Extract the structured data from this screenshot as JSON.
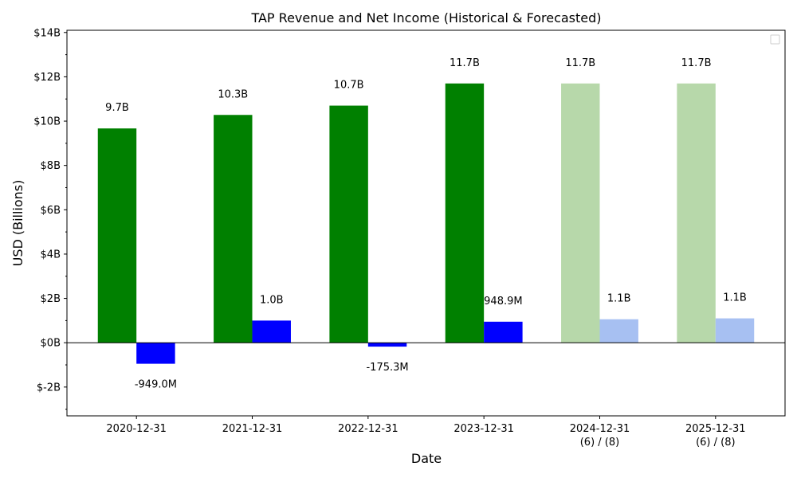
{
  "chart_data": {
    "type": "bar",
    "title": "TAP Revenue and Net Income (Historical & Forecasted)",
    "xlabel": "Date",
    "ylabel": "USD (Billions)",
    "ylim": [
      -3.3,
      14.1
    ],
    "y_ticks": [
      -2,
      0,
      2,
      4,
      6,
      8,
      10,
      12,
      14
    ],
    "y_tick_labels": [
      "$-2B",
      "$0B",
      "$2B",
      "$4B",
      "$6B",
      "$8B",
      "$10B",
      "$12B",
      "$14B"
    ],
    "categories": [
      "2020-12-31",
      "2021-12-31",
      "2022-12-31",
      "2023-12-31",
      "2024-12-31",
      "2025-12-31"
    ],
    "category_sublabels": [
      "",
      "",
      "",
      "",
      "(6) / (8)",
      "(6) / (8)"
    ],
    "forecasted": [
      false,
      false,
      false,
      false,
      true,
      true
    ],
    "grid": false,
    "legend": {
      "placement": "top-right",
      "entries": []
    },
    "series": [
      {
        "values": [
          9.67,
          10.28,
          10.7,
          11.7,
          11.7,
          11.7
        ],
        "labels": [
          "9.7B",
          "10.3B",
          "10.7B",
          "11.7B",
          "11.7B",
          "11.7B"
        ],
        "color": "#008000",
        "forecast_color": "#b7d8aa"
      },
      {
        "values": [
          -0.949,
          1.0,
          -0.1753,
          0.9489,
          1.06,
          1.1
        ],
        "labels": [
          "-949.0M",
          "1.0B",
          "-175.3M",
          "948.9M",
          "1.1B",
          "1.1B"
        ],
        "color": "#0000ff",
        "forecast_color": "#a7c0f2"
      }
    ]
  }
}
